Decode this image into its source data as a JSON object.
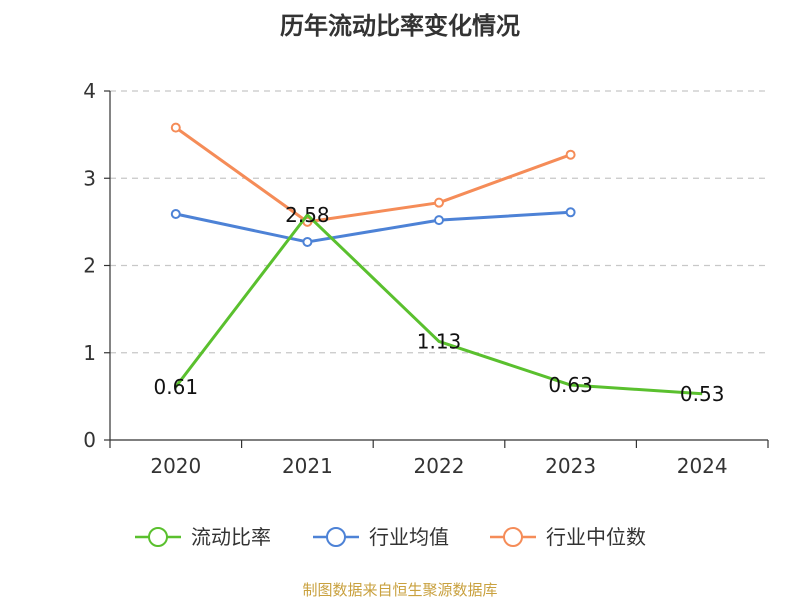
{
  "chart_data": {
    "type": "line",
    "title": "历年流动比率变化情况",
    "categories": [
      "2020",
      "2021",
      "2022",
      "2023",
      "2024"
    ],
    "ylim": [
      0,
      4
    ],
    "yticks": [
      "0",
      "1",
      "2",
      "3",
      "4"
    ],
    "grid": true,
    "legend_position": "bottom",
    "series": [
      {
        "name": "流动比率",
        "color": "#5ac02e",
        "values": [
          0.61,
          2.58,
          1.13,
          0.63,
          0.53
        ],
        "labels": [
          "0.61",
          "2.58",
          "1.13",
          "0.63",
          "0.53"
        ]
      },
      {
        "name": "行业均值",
        "color": "#4d82d6",
        "values": [
          2.59,
          2.27,
          2.52,
          2.61,
          null
        ]
      },
      {
        "name": "行业中位数",
        "color": "#f58c58",
        "values": [
          3.58,
          2.5,
          2.72,
          3.27,
          null
        ]
      }
    ]
  },
  "source": {
    "text": "制图数据来自恒生聚源数据库",
    "color": "#c9a13f"
  }
}
